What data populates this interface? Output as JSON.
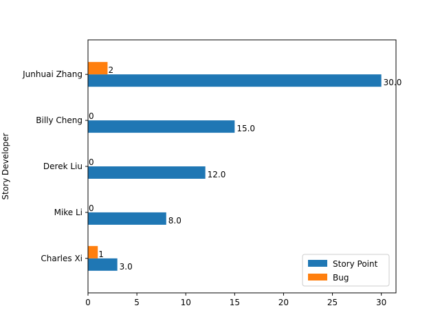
{
  "chart_data": {
    "type": "bar",
    "orientation": "horizontal",
    "title": "",
    "xlabel": "",
    "ylabel": "Story Developer",
    "categories": [
      "Charles Xi",
      "Mike Li",
      "Derek Liu",
      "Billy Cheng",
      "Junhuai Zhang"
    ],
    "series": [
      {
        "name": "Story Point",
        "color": "#1f77b4",
        "values": [
          3.0,
          8.0,
          12.0,
          15.0,
          30.0
        ],
        "labels": [
          "3.0",
          "8.0",
          "12.0",
          "15.0",
          "30.0"
        ]
      },
      {
        "name": "Bug",
        "color": "#ff7f0e",
        "values": [
          1,
          0,
          0,
          0,
          2
        ],
        "labels": [
          "1",
          "0",
          "0",
          "0",
          "2"
        ]
      }
    ],
    "xlim": [
      0,
      31.5
    ],
    "xticks": [
      0,
      5,
      10,
      15,
      20,
      25,
      30
    ],
    "grid": false,
    "legend_position": "lower-right"
  }
}
